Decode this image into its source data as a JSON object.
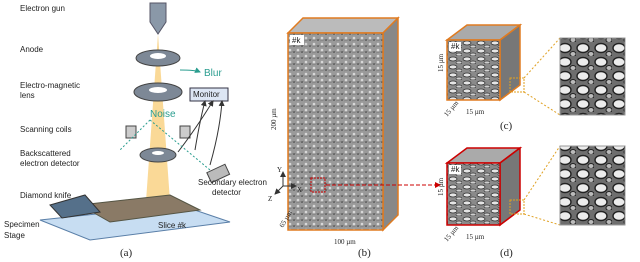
{
  "panel_a": {
    "label": "(a)",
    "electron_gun": "Electron gun",
    "anode": "Anode",
    "lens": [
      "Electro-magnetic",
      "lens"
    ],
    "scanning_coils": "Scanning coils",
    "backscattered_detector": [
      "Backscattered",
      "electron detector"
    ],
    "diamond_knife": "Diamond knife",
    "specimen": "Specimen",
    "stage": "Stage",
    "blur": "Blur",
    "noise": "Noise",
    "monitor": "Monitor",
    "secondary_detector": [
      "Secondary electron",
      "detector"
    ],
    "slice": "Slice #k"
  },
  "panel_b": {
    "label": "(b)",
    "slice": "#k",
    "height": "200 µm",
    "depth": "65 µm",
    "width": "100 µm",
    "axes": [
      "Y",
      "X",
      "Z"
    ]
  },
  "panel_c": {
    "label": "(c)",
    "slice": "#k",
    "dims": [
      "15 µm",
      "15 µm",
      "15 µm"
    ]
  },
  "panel_d": {
    "label": "(d)",
    "slice": "#k",
    "dims": [
      "15 µm",
      "15 µm",
      "15 µm"
    ]
  }
}
